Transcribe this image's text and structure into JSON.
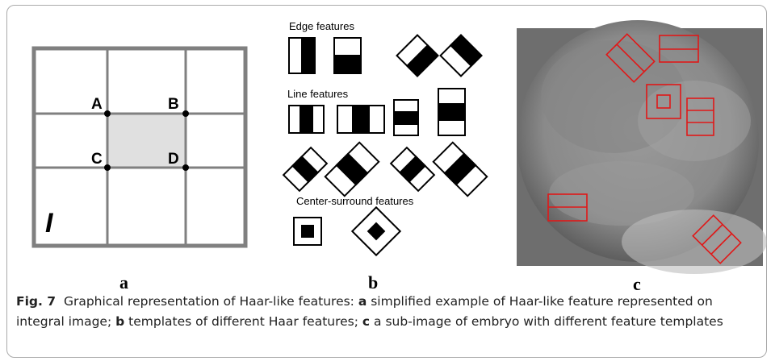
{
  "panel_a": {
    "corners": [
      "A",
      "B",
      "C",
      "D"
    ],
    "image_label": "I",
    "caption": "a"
  },
  "panel_b": {
    "groups": [
      "Edge features",
      "Line features",
      "Center-surround features"
    ],
    "caption": "b"
  },
  "panel_c": {
    "caption": "c"
  },
  "figure_caption": {
    "label": "Fig. 7",
    "parts": [
      "Graphical representation of Haar-like features: ",
      "a",
      " simplified example of Haar-like feature represented on integral image; ",
      "b",
      " templates of different Haar features; ",
      "c",
      " a sub-image of embryo with different feature templates"
    ]
  }
}
